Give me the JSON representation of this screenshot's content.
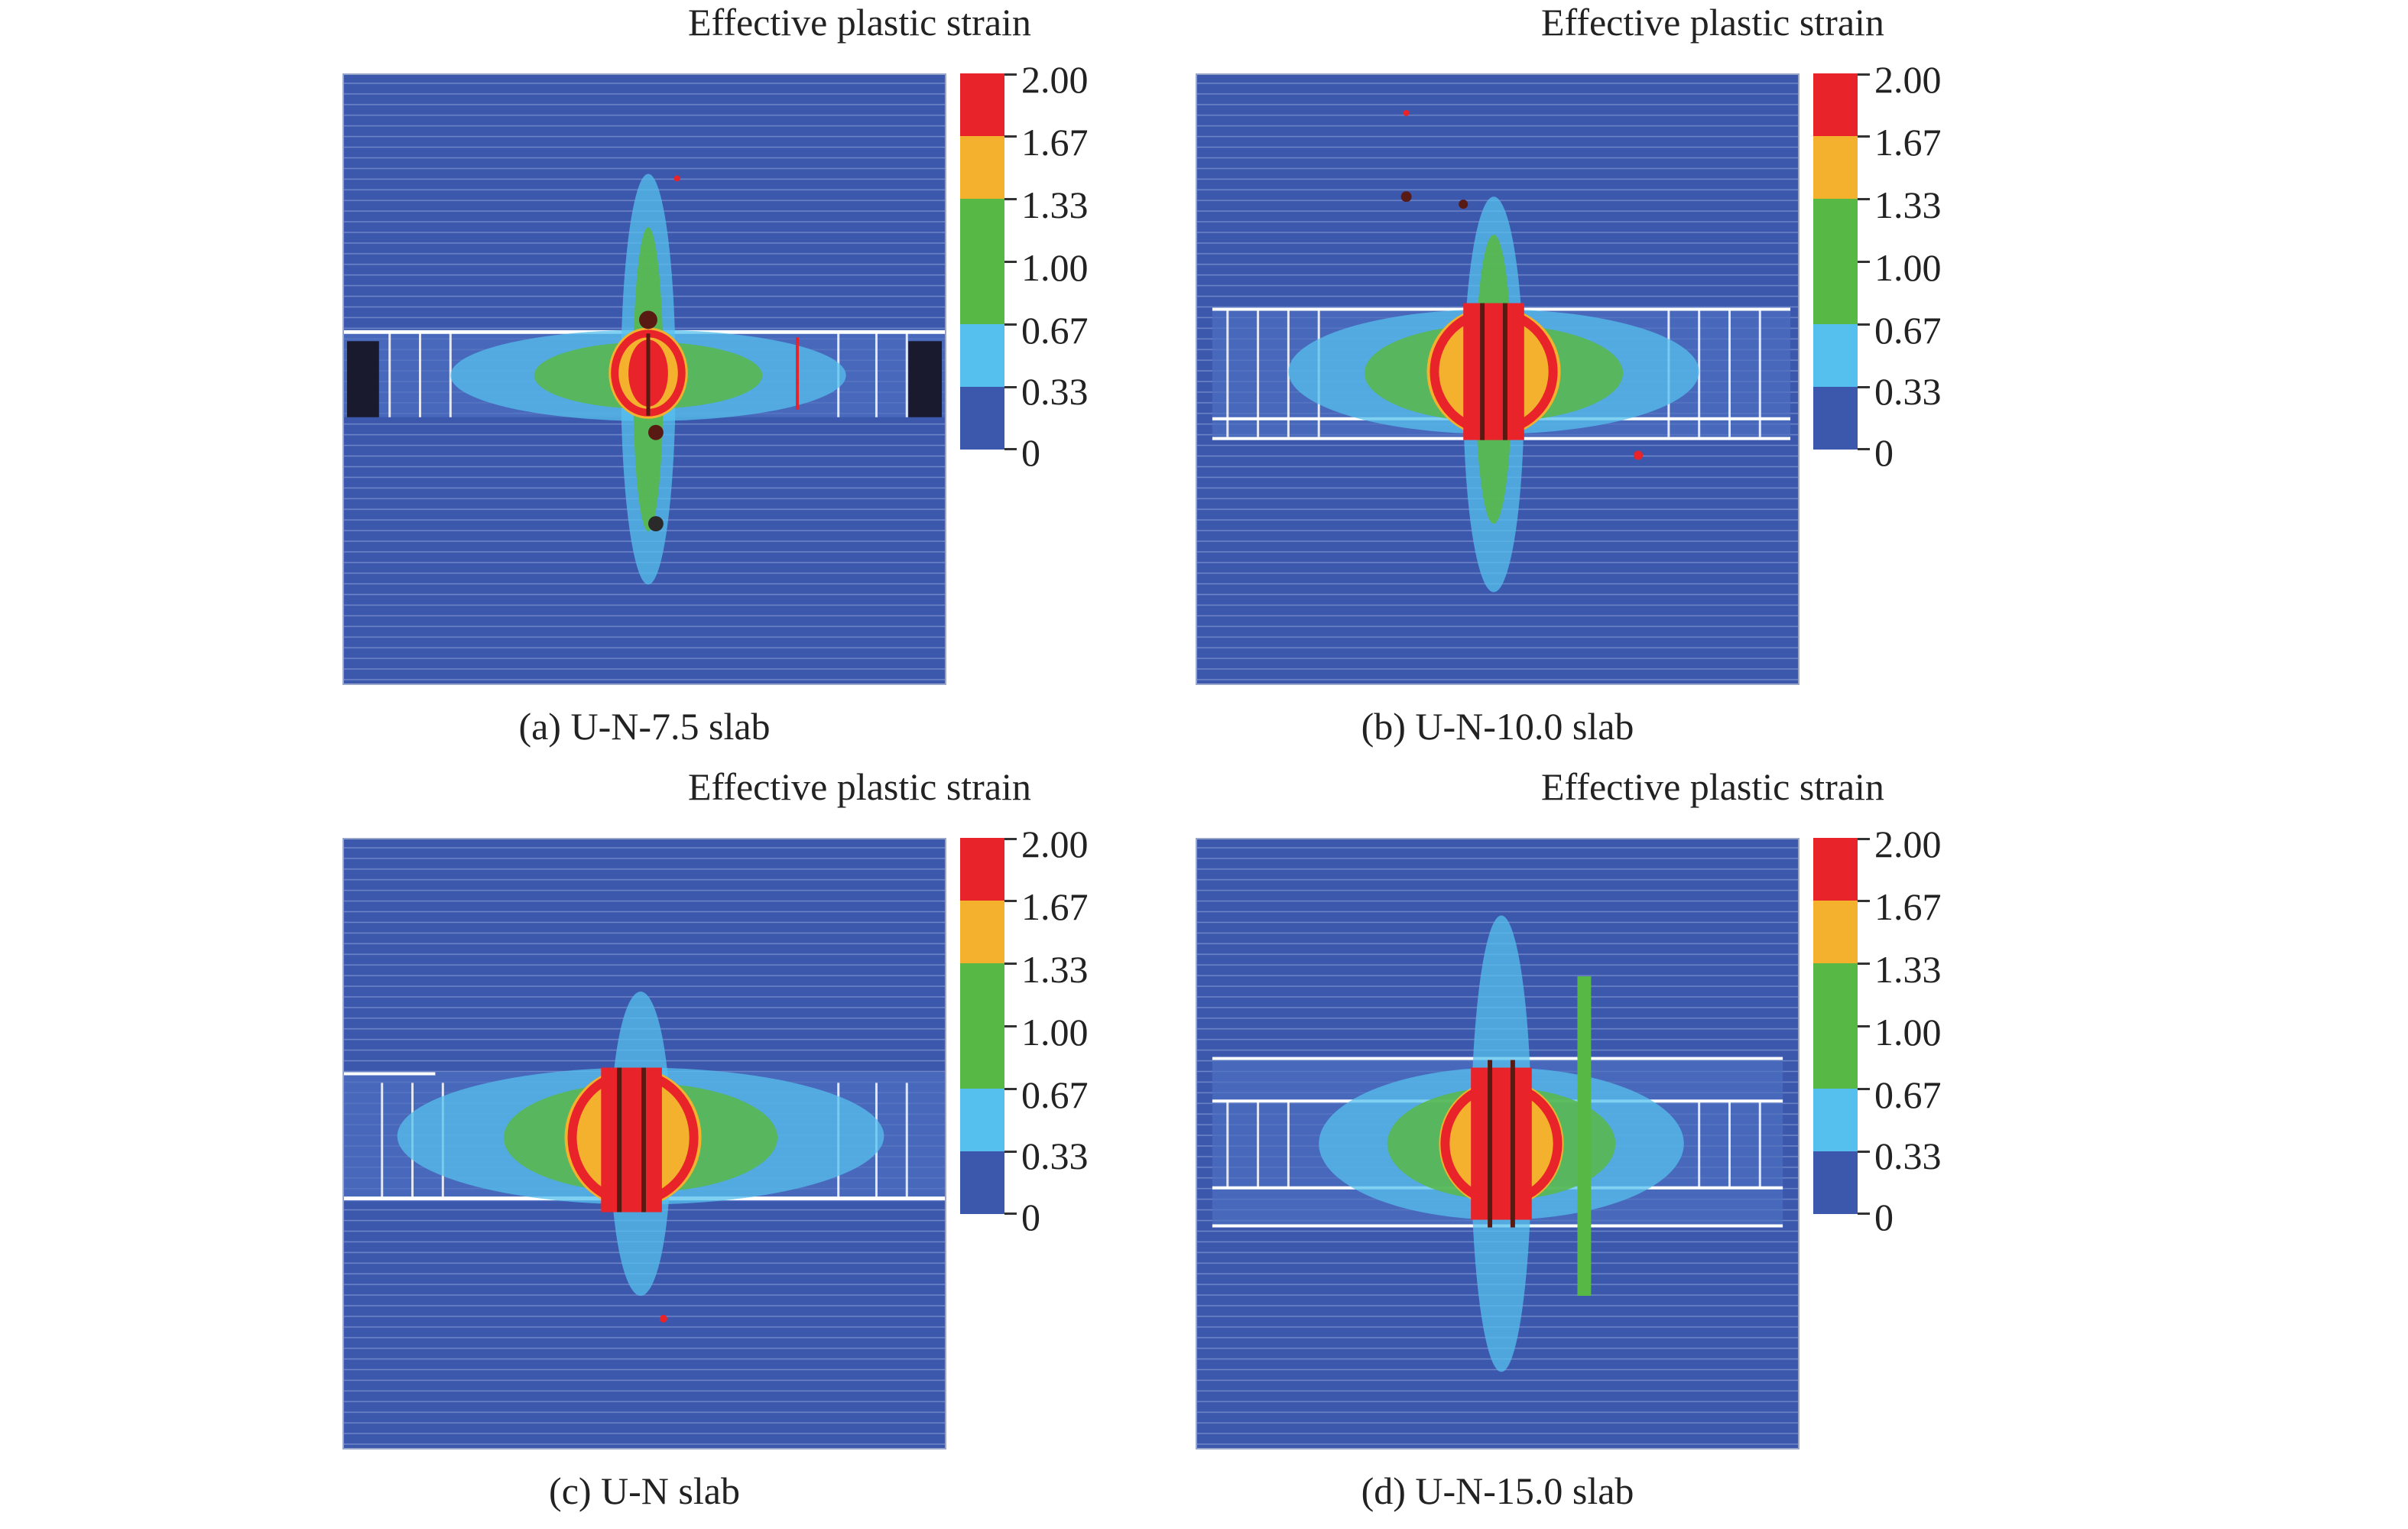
{
  "colors": {
    "background": "#3c58ad",
    "scale": [
      "#3c58ad",
      "#55c0ee",
      "#58b846",
      "#f4b12e",
      "#e8232a"
    ]
  },
  "legend": {
    "title": "Effective plastic strain",
    "ticks": [
      "2.00",
      "1.67",
      "1.33",
      "1.00",
      "0.67",
      "0.33",
      "0"
    ]
  },
  "panels": [
    {
      "caption": "(a) U-N-7.5 slab",
      "legend_title": "Effective plastic strain",
      "ticks": [
        "2.00",
        "1.67",
        "1.33",
        "1.00",
        "0.67",
        "0.33",
        "0"
      ]
    },
    {
      "caption": "(b) U-N-10.0 slab",
      "legend_title": "Effective plastic strain",
      "ticks": [
        "2.00",
        "1.67",
        "1.33",
        "1.00",
        "0.67",
        "0.33",
        "0"
      ]
    },
    {
      "caption": "(c) U-N slab",
      "legend_title": "Effective plastic strain",
      "ticks": [
        "2.00",
        "1.67",
        "1.33",
        "1.00",
        "0.67",
        "0.33",
        "0"
      ]
    },
    {
      "caption": "(d) U-N-15.0 slab",
      "legend_title": "Effective plastic strain",
      "ticks": [
        "2.00",
        "1.67",
        "1.33",
        "1.00",
        "0.67",
        "0.33",
        "0"
      ]
    }
  ]
}
